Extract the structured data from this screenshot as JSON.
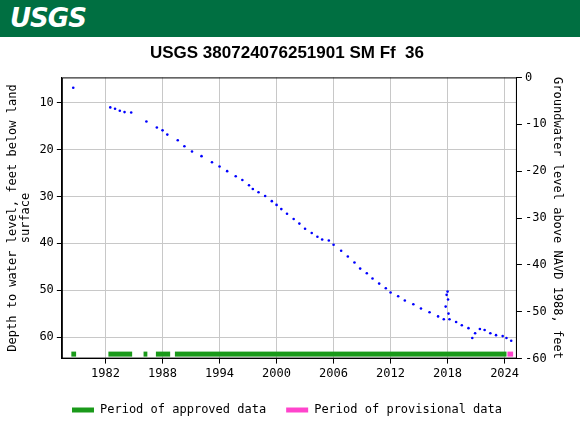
{
  "header": {
    "logo": "USGS"
  },
  "chart_data": {
    "type": "scatter",
    "title": "USGS 380724076251901 SM Ff  36",
    "ylabel": "Depth to water level, feet below land surface",
    "y2label": "Groundwater level above NAVD 1988, feet",
    "color": "#0000ff",
    "marker": "circle",
    "x": [
      1978.6,
      1982.5,
      1983.0,
      1983.5,
      1984.0,
      1984.7,
      1986.3,
      1987.4,
      1988.0,
      1988.5,
      1989.6,
      1990.3,
      1991.1,
      1992.1,
      1993.2,
      1994.0,
      1994.8,
      1995.7,
      1996.4,
      1997.1,
      1997.5,
      1998.1,
      1998.8,
      1999.5,
      2000.0,
      2000.5,
      2001.1,
      2001.8,
      2002.4,
      2003.0,
      2003.7,
      2004.3,
      2004.8,
      2005.5,
      2006.0,
      2006.8,
      2007.5,
      2008.2,
      2008.8,
      2009.5,
      2010.1,
      2010.8,
      2011.5,
      2012.0,
      2012.8,
      2013.5,
      2014.4,
      2015.2,
      2016.1,
      2017.0,
      2017.6,
      2017.8,
      2017.9,
      2018.0,
      2018.05,
      2018.1,
      2018.2,
      2018.9,
      2019.5,
      2020.2,
      2020.6,
      2020.9,
      2021.4,
      2021.9,
      2022.5,
      2023.1,
      2023.8,
      2024.2,
      2024.7
    ],
    "values": [
      6.8,
      11.0,
      11.3,
      11.7,
      12.0,
      12.1,
      14.0,
      15.3,
      15.9,
      16.8,
      18.0,
      19.3,
      20.4,
      21.4,
      22.7,
      23.6,
      24.6,
      25.7,
      26.5,
      27.6,
      28.4,
      29.1,
      29.9,
      31.0,
      31.8,
      32.7,
      33.7,
      34.8,
      35.8,
      36.9,
      37.8,
      38.6,
      39.2,
      39.4,
      40.3,
      41.6,
      42.8,
      44.1,
      45.4,
      46.4,
      47.5,
      48.6,
      49.6,
      50.5,
      51.3,
      52.2,
      53.0,
      53.9,
      54.7,
      55.6,
      56.2,
      53.5,
      51.0,
      50.3,
      52.0,
      55.0,
      56.2,
      56.8,
      57.5,
      58.1,
      60.2,
      59.2,
      58.3,
      58.5,
      59.2,
      59.6,
      59.8,
      60.2,
      60.8
    ],
    "xlim": [
      1977.4,
      2025.3
    ],
    "xticks": [
      1982,
      1988,
      1994,
      2000,
      2006,
      2012,
      2018,
      2024
    ],
    "ylim": [
      64.6,
      4.6
    ],
    "yticks": [
      10,
      20,
      30,
      40,
      50,
      60
    ],
    "y2lim": [
      -60,
      0
    ],
    "y2ticks": [
      0,
      -10,
      -20,
      -30,
      -40,
      -50,
      -60
    ],
    "grid": true,
    "legend": "bottom",
    "periods": [
      {
        "name": "Period of approved data",
        "color": "#1a9a1a",
        "ranges": [
          [
            1978.4,
            1978.9
          ],
          [
            1982.3,
            1984.8
          ],
          [
            1986.0,
            1986.4
          ],
          [
            1987.3,
            1988.8
          ],
          [
            1989.3,
            2024.2
          ]
        ]
      },
      {
        "name": "Period of provisional data",
        "color": "#ff44cc",
        "ranges": [
          [
            2024.3,
            2024.9
          ]
        ]
      }
    ]
  }
}
